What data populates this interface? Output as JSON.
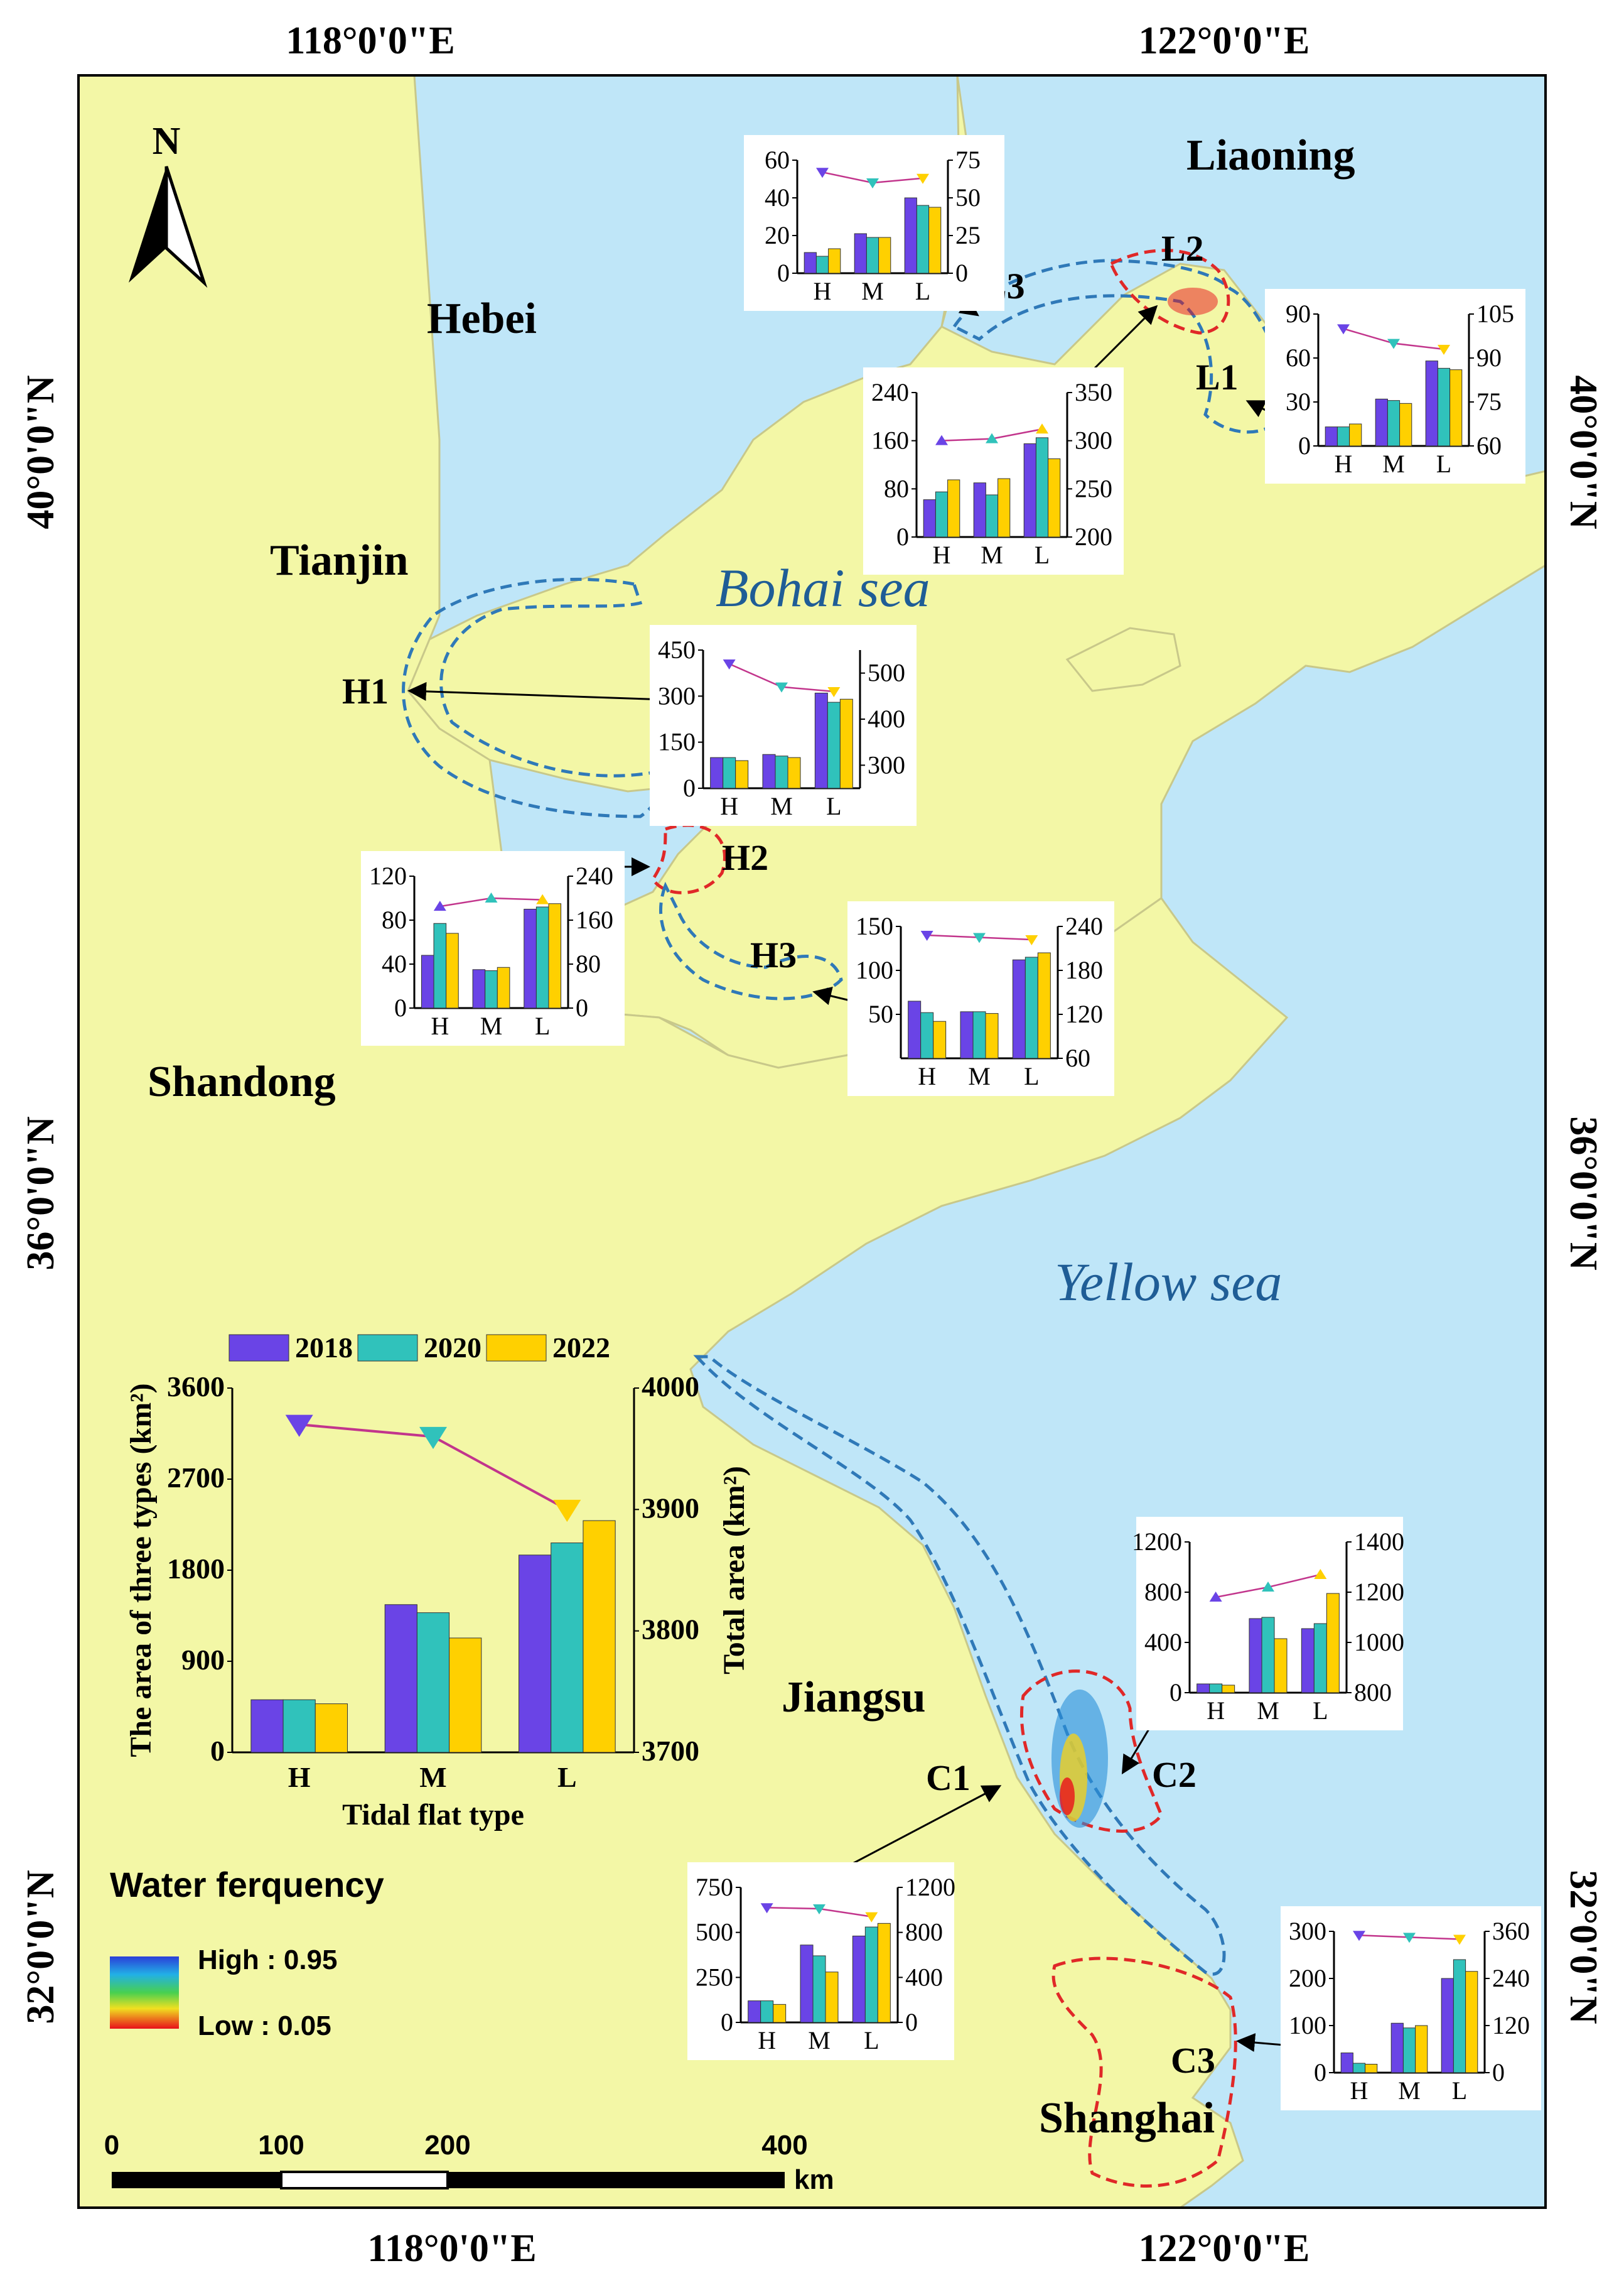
{
  "map": {
    "lon_labels": [
      "118°0'0\"E",
      "122°0'0\"E"
    ],
    "lat_labels": [
      "40°0'0\"N",
      "36°0'0\"N",
      "32°0'0\"N"
    ],
    "north_label": "N",
    "regions": [
      "Liaoning",
      "Hebei",
      "Tianjin",
      "Shandong",
      "Jiangsu",
      "Shanghai"
    ],
    "seas": [
      "Bohai sea",
      "Yellow sea"
    ],
    "sites": [
      "L1",
      "L2",
      "L3",
      "H1",
      "H2",
      "H3",
      "C1",
      "C2",
      "C3"
    ],
    "legend": {
      "title": "Water ferquency",
      "high": "High : 0.95",
      "low": "Low : 0.05",
      "high_color": "#2a3fd8",
      "low_color": "#e8101a"
    },
    "scale_bar": {
      "ticks": [
        "0",
        "100",
        "200",
        "400"
      ],
      "unit": "km"
    },
    "colors": {
      "land": "#f3f7a6",
      "sea": "#bfe6f8",
      "outside": "#ffffff",
      "border": "#c8c88a",
      "dashed_blue": "#2f79b8",
      "dashed_red": "#e02828",
      "series_2018": "#6a44e6",
      "series_2020": "#30c2bb",
      "series_2022": "#ffd000",
      "trend_line": "#c2358c"
    }
  },
  "chart_data": [
    {
      "id": "summary",
      "type": "bar",
      "categories": [
        "H",
        "M",
        "L"
      ],
      "series": [
        {
          "name": "2018",
          "values": [
            520,
            1460,
            1950
          ]
        },
        {
          "name": "2020",
          "values": [
            520,
            1380,
            2070
          ]
        },
        {
          "name": "2022",
          "values": [
            480,
            1130,
            2290
          ]
        }
      ],
      "total": [
        3970,
        3960,
        3900
      ],
      "ylabel": "The area of three types (km²)",
      "y2label": "Total area (km²)",
      "xlabel": "Tidal flat type",
      "y_ticks": [
        "0",
        "900",
        "1800",
        "2700",
        "3600"
      ],
      "y2_ticks": [
        "3700",
        "3800",
        "3900",
        "4000"
      ],
      "ylim": [
        0,
        3600
      ],
      "y2lim": [
        3700,
        4000
      ],
      "legend": [
        "2018",
        "2020",
        "2022"
      ]
    },
    {
      "id": "L3",
      "type": "bar",
      "categories": [
        "H",
        "M",
        "L"
      ],
      "series": [
        {
          "name": "2018",
          "values": [
            11,
            21,
            40
          ]
        },
        {
          "name": "2020",
          "values": [
            9,
            19,
            36
          ]
        },
        {
          "name": "2022",
          "values": [
            13,
            19,
            35
          ]
        }
      ],
      "total": [
        67,
        60,
        63
      ],
      "y_ticks": [
        "0",
        "20",
        "40",
        "60"
      ],
      "y2_ticks": [
        "0",
        "25",
        "50",
        "75"
      ],
      "ylim": [
        0,
        60
      ],
      "y2lim": [
        0,
        75
      ]
    },
    {
      "id": "L1",
      "type": "bar",
      "categories": [
        "H",
        "M",
        "L"
      ],
      "series": [
        {
          "name": "2018",
          "values": [
            13,
            32,
            58
          ]
        },
        {
          "name": "2020",
          "values": [
            13,
            31,
            53
          ]
        },
        {
          "name": "2022",
          "values": [
            15,
            29,
            52
          ]
        }
      ],
      "total": [
        100,
        95,
        93
      ],
      "y_ticks": [
        "0",
        "30",
        "60",
        "90"
      ],
      "y2_ticks": [
        "60",
        "75",
        "90",
        "105"
      ],
      "ylim": [
        0,
        90
      ],
      "y2lim": [
        60,
        105
      ]
    },
    {
      "id": "L2",
      "type": "bar",
      "categories": [
        "H",
        "M",
        "L"
      ],
      "series": [
        {
          "name": "2018",
          "values": [
            62,
            90,
            155
          ]
        },
        {
          "name": "2020",
          "values": [
            75,
            70,
            165
          ]
        },
        {
          "name": "2022",
          "values": [
            95,
            97,
            130
          ]
        }
      ],
      "total": [
        300,
        302,
        312
      ],
      "y_ticks": [
        "0",
        "80",
        "160",
        "240"
      ],
      "y2_ticks": [
        "200",
        "250",
        "300",
        "350"
      ],
      "ylim": [
        0,
        240
      ],
      "y2lim": [
        200,
        350
      ]
    },
    {
      "id": "H1",
      "type": "bar",
      "categories": [
        "H",
        "M",
        "L"
      ],
      "series": [
        {
          "name": "2018",
          "values": [
            100,
            110,
            310
          ]
        },
        {
          "name": "2020",
          "values": [
            100,
            105,
            280
          ]
        },
        {
          "name": "2022",
          "values": [
            90,
            100,
            290
          ]
        }
      ],
      "total": [
        520,
        470,
        460
      ],
      "y_ticks": [
        "0",
        "150",
        "300",
        "450"
      ],
      "y2_ticks": [
        "300",
        "400",
        "500"
      ],
      "ylim": [
        0,
        450
      ],
      "y2lim": [
        250,
        550
      ]
    },
    {
      "id": "H2",
      "type": "bar",
      "categories": [
        "H",
        "M",
        "L"
      ],
      "series": [
        {
          "name": "2018",
          "values": [
            48,
            35,
            90
          ]
        },
        {
          "name": "2020",
          "values": [
            77,
            34,
            92
          ]
        },
        {
          "name": "2022",
          "values": [
            68,
            37,
            95
          ]
        }
      ],
      "total": [
        185,
        200,
        197
      ],
      "y_ticks": [
        "0",
        "40",
        "80",
        "120"
      ],
      "y2_ticks": [
        "0",
        "80",
        "160",
        "240"
      ],
      "ylim": [
        0,
        120
      ],
      "y2lim": [
        0,
        240
      ]
    },
    {
      "id": "H3",
      "type": "bar",
      "categories": [
        "H",
        "M",
        "L"
      ],
      "series": [
        {
          "name": "2018",
          "values": [
            65,
            53,
            112
          ]
        },
        {
          "name": "2020",
          "values": [
            52,
            53,
            115
          ]
        },
        {
          "name": "2022",
          "values": [
            42,
            51,
            120
          ]
        }
      ],
      "total": [
        228,
        225,
        222
      ],
      "y_ticks": [
        "50",
        "100",
        "150"
      ],
      "y2_ticks": [
        "60",
        "120",
        "180",
        "240"
      ],
      "ylim": [
        0,
        150
      ],
      "y2lim": [
        60,
        240
      ]
    },
    {
      "id": "C2",
      "type": "bar",
      "categories": [
        "H",
        "M",
        "L"
      ],
      "series": [
        {
          "name": "2018",
          "values": [
            70,
            590,
            510
          ]
        },
        {
          "name": "2020",
          "values": [
            70,
            600,
            550
          ]
        },
        {
          "name": "2022",
          "values": [
            60,
            430,
            790
          ]
        }
      ],
      "total": [
        1180,
        1220,
        1270
      ],
      "y_ticks": [
        "0",
        "400",
        "800",
        "1200"
      ],
      "y2_ticks": [
        "800",
        "1000",
        "1200",
        "1400"
      ],
      "ylim": [
        0,
        1200
      ],
      "y2lim": [
        800,
        1400
      ]
    },
    {
      "id": "C1",
      "type": "bar",
      "categories": [
        "H",
        "M",
        "L"
      ],
      "series": [
        {
          "name": "2018",
          "values": [
            120,
            430,
            480
          ]
        },
        {
          "name": "2020",
          "values": [
            120,
            370,
            530
          ]
        },
        {
          "name": "2022",
          "values": [
            100,
            280,
            550
          ]
        }
      ],
      "total": [
        1020,
        1010,
        940
      ],
      "y_ticks": [
        "0",
        "250",
        "500",
        "750"
      ],
      "y2_ticks": [
        "0",
        "400",
        "800",
        "1200"
      ],
      "ylim": [
        0,
        750
      ],
      "y2lim": [
        0,
        1200
      ]
    },
    {
      "id": "C3",
      "type": "bar",
      "categories": [
        "H",
        "M",
        "L"
      ],
      "series": [
        {
          "name": "2018",
          "values": [
            42,
            105,
            200
          ]
        },
        {
          "name": "2020",
          "values": [
            20,
            95,
            240
          ]
        },
        {
          "name": "2022",
          "values": [
            18,
            100,
            215
          ]
        }
      ],
      "total": [
        350,
        345,
        340
      ],
      "y_ticks": [
        "0",
        "100",
        "200",
        "300"
      ],
      "y2_ticks": [
        "0",
        "120",
        "240",
        "360"
      ],
      "ylim": [
        0,
        300
      ],
      "y2lim": [
        0,
        360
      ]
    }
  ]
}
